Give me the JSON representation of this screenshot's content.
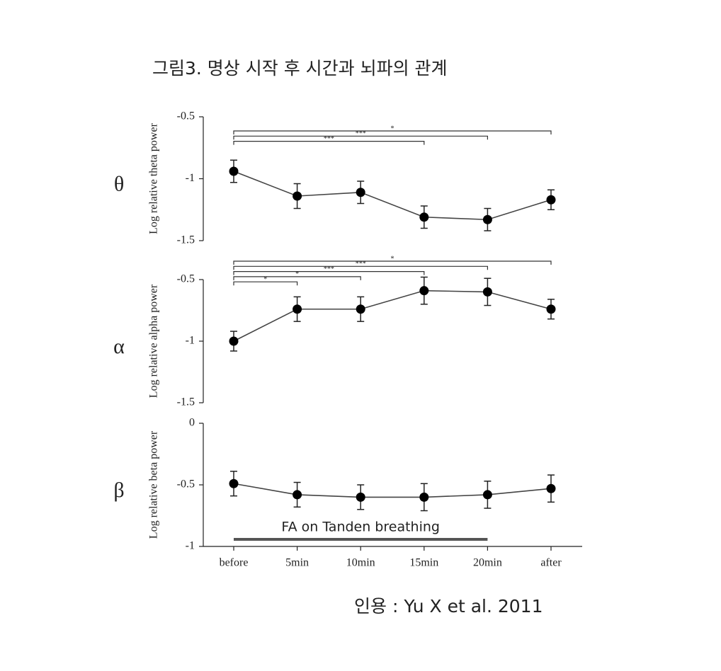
{
  "title": "그림3. 명상 시작 후 시간과 뇌파의 관계",
  "caption": "인용 :  Yu X et al. 2011",
  "chart_data": [
    {
      "type": "line",
      "panel_label": "θ",
      "ylabel": "Log relative theta power",
      "color": "#000000",
      "values": [
        -0.94,
        -1.14,
        -1.11,
        -1.31,
        -1.33,
        -1.17
      ],
      "errors": [
        0.09,
        0.1,
        0.09,
        0.09,
        0.09,
        0.08
      ],
      "ylim": [
        -1.5,
        -0.5
      ],
      "yticks": [
        -1.5,
        -1,
        -0.5
      ],
      "significance": [
        {
          "from": 0,
          "to": 5,
          "label": "*"
        },
        {
          "from": 0,
          "to": 4,
          "label": "***"
        },
        {
          "from": 0,
          "to": 3,
          "label": "***"
        }
      ]
    },
    {
      "type": "line",
      "panel_label": "α",
      "ylabel": "Log relative alpha power",
      "color": "#000000",
      "values": [
        -1.0,
        -0.74,
        -0.74,
        -0.59,
        -0.6,
        -0.74
      ],
      "errors": [
        0.08,
        0.1,
        0.1,
        0.11,
        0.11,
        0.08
      ],
      "ylim": [
        -1.5,
        -0.5
      ],
      "yticks": [
        -1.5,
        -1,
        -0.5
      ],
      "significance": [
        {
          "from": 0,
          "to": 5,
          "label": "*"
        },
        {
          "from": 0,
          "to": 4,
          "label": "***"
        },
        {
          "from": 0,
          "to": 3,
          "label": "***"
        },
        {
          "from": 0,
          "to": 2,
          "label": "*"
        },
        {
          "from": 0,
          "to": 1,
          "label": "*"
        }
      ]
    },
    {
      "type": "line",
      "panel_label": "β",
      "ylabel": "Log relative beta power",
      "color": "#000000",
      "categories": [
        "before",
        "5min",
        "10min",
        "15min",
        "20min",
        "after"
      ],
      "values": [
        -0.49,
        -0.58,
        -0.6,
        -0.6,
        -0.58,
        -0.53
      ],
      "errors": [
        0.1,
        0.1,
        0.1,
        0.11,
        0.11,
        0.11
      ],
      "ylim": [
        -1,
        0
      ],
      "yticks": [
        -1,
        -0.5,
        0
      ],
      "annotation": {
        "text": "FA on Tanden breathing",
        "from": 0,
        "to": 4
      }
    }
  ]
}
